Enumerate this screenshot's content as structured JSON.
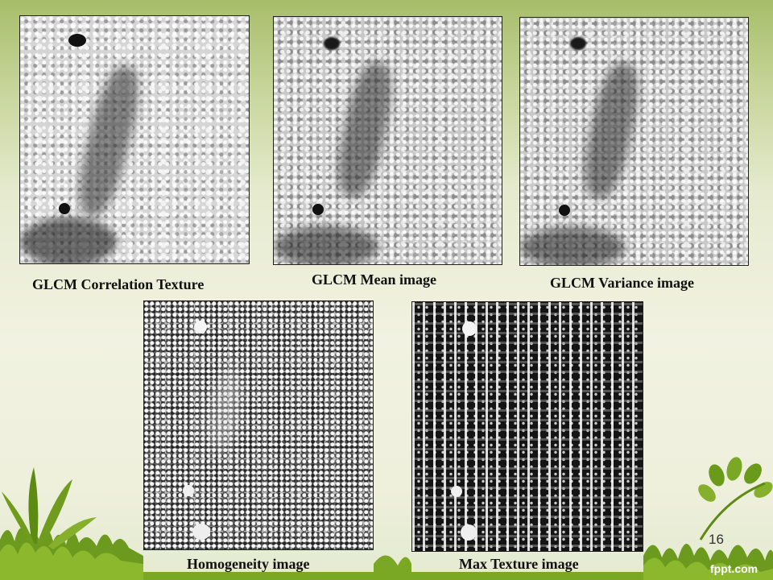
{
  "slide": {
    "page_number": "16",
    "logo_text": "fppt.com"
  },
  "panels": [
    {
      "caption": "GLCM  Correlation  Texture"
    },
    {
      "caption": "GLCM  Mean  image"
    },
    {
      "caption": "GLCM Variance image"
    },
    {
      "caption": "Homogeneity image"
    },
    {
      "caption": "Max Texture image"
    }
  ]
}
